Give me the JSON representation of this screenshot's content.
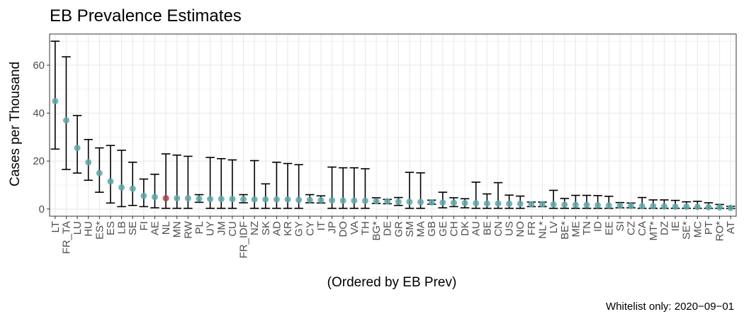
{
  "chart_data": {
    "type": "scatter",
    "title": "EB Prevalence Estimates",
    "xlabel": "(Ordered by EB Prev)",
    "ylabel": "Cases per Thousand",
    "caption": "Whitelist only: 2020−09−01",
    "ylim": [
      -3,
      73
    ],
    "yticks": [
      0,
      20,
      40,
      60
    ],
    "grid": true,
    "legend": "none",
    "colors": {
      "point": "#5fa7a8",
      "highlight": "#a84446",
      "errorbar": "#000000",
      "grid": "#ebebeb",
      "panel_border": "#333333"
    },
    "highlight_category": "NL",
    "categories": [
      "LT",
      "FR_TA",
      "LU",
      "HU",
      "ES*",
      "ES",
      "LB",
      "SE",
      "FI",
      "AE",
      "NL",
      "MN",
      "RW",
      "PL",
      "UY",
      "JM",
      "CU",
      "FR_IDF",
      "NZ",
      "SK",
      "AD",
      "KR",
      "GY",
      "CY",
      "IT",
      "JP",
      "DO",
      "VA",
      "TH",
      "BG*",
      "DE",
      "GR",
      "SM",
      "MA",
      "GB",
      "GE",
      "CH",
      "DK",
      "AU",
      "BE",
      "CN",
      "US",
      "NO",
      "FR",
      "NL*",
      "LV",
      "BE*",
      "ME",
      "TN",
      "ID",
      "EE",
      "SI",
      "CZ",
      "CA",
      "MT*",
      "DZ",
      "IE",
      "SE*",
      "MC",
      "PT",
      "RO*",
      "AT"
    ],
    "values": [
      45,
      37,
      25.5,
      19.5,
      15,
      11.5,
      9,
      8.5,
      5.5,
      5,
      4.5,
      4.5,
      4.5,
      4.3,
      4.2,
      4.2,
      4.2,
      4.1,
      4,
      4,
      4,
      4,
      3.8,
      3.8,
      3.7,
      3.6,
      3.5,
      3.5,
      3.4,
      3.3,
      3.2,
      3,
      3,
      2.9,
      2.8,
      2.7,
      2.6,
      2.5,
      2.4,
      2.3,
      2.3,
      2.2,
      2.2,
      2,
      2,
      1.9,
      1.8,
      1.7,
      1.7,
      1.6,
      1.5,
      1.4,
      1.3,
      1.2,
      1.2,
      1.1,
      1,
      1,
      0.9,
      0.8,
      0.7,
      0.5
    ],
    "lower": [
      25,
      16.5,
      15,
      12,
      7,
      2.5,
      1,
      1.5,
      1,
      0.5,
      0.3,
      0.3,
      0.3,
      2.8,
      0.3,
      0.3,
      0.3,
      2.6,
      0.3,
      0.3,
      0.3,
      0.3,
      0.3,
      2.6,
      2.5,
      0.3,
      0.3,
      0.3,
      0.3,
      2.3,
      2.2,
      1.5,
      0.3,
      0.3,
      2,
      0.5,
      1,
      0.5,
      0.3,
      0.3,
      0.3,
      0.3,
      0.3,
      1,
      1,
      0.3,
      0.3,
      0.3,
      0.3,
      0.3,
      0.3,
      0.5,
      0.5,
      0.3,
      0.3,
      0.3,
      0.3,
      0.3,
      0.3,
      0.3,
      0.3,
      0.2
    ],
    "upper": [
      70,
      63.5,
      39,
      29,
      25.5,
      26.5,
      24.5,
      19.5,
      12.5,
      14.5,
      23,
      22.5,
      22,
      6,
      21.5,
      21,
      20.5,
      6,
      20.2,
      10.5,
      19.5,
      19,
      18.5,
      6,
      5.5,
      17.5,
      17.2,
      17.2,
      16.8,
      4.7,
      4,
      4.8,
      15.3,
      15.1,
      3.7,
      7,
      4.7,
      4.3,
      11.2,
      6.3,
      11,
      5.8,
      5.4,
      2.9,
      2.9,
      7.8,
      4.4,
      5.7,
      5.7,
      5.6,
      5.3,
      2.7,
      2.5,
      4.8,
      3.8,
      3.8,
      3.6,
      3,
      3.2,
      2.6,
      1.9,
      1.1
    ]
  }
}
